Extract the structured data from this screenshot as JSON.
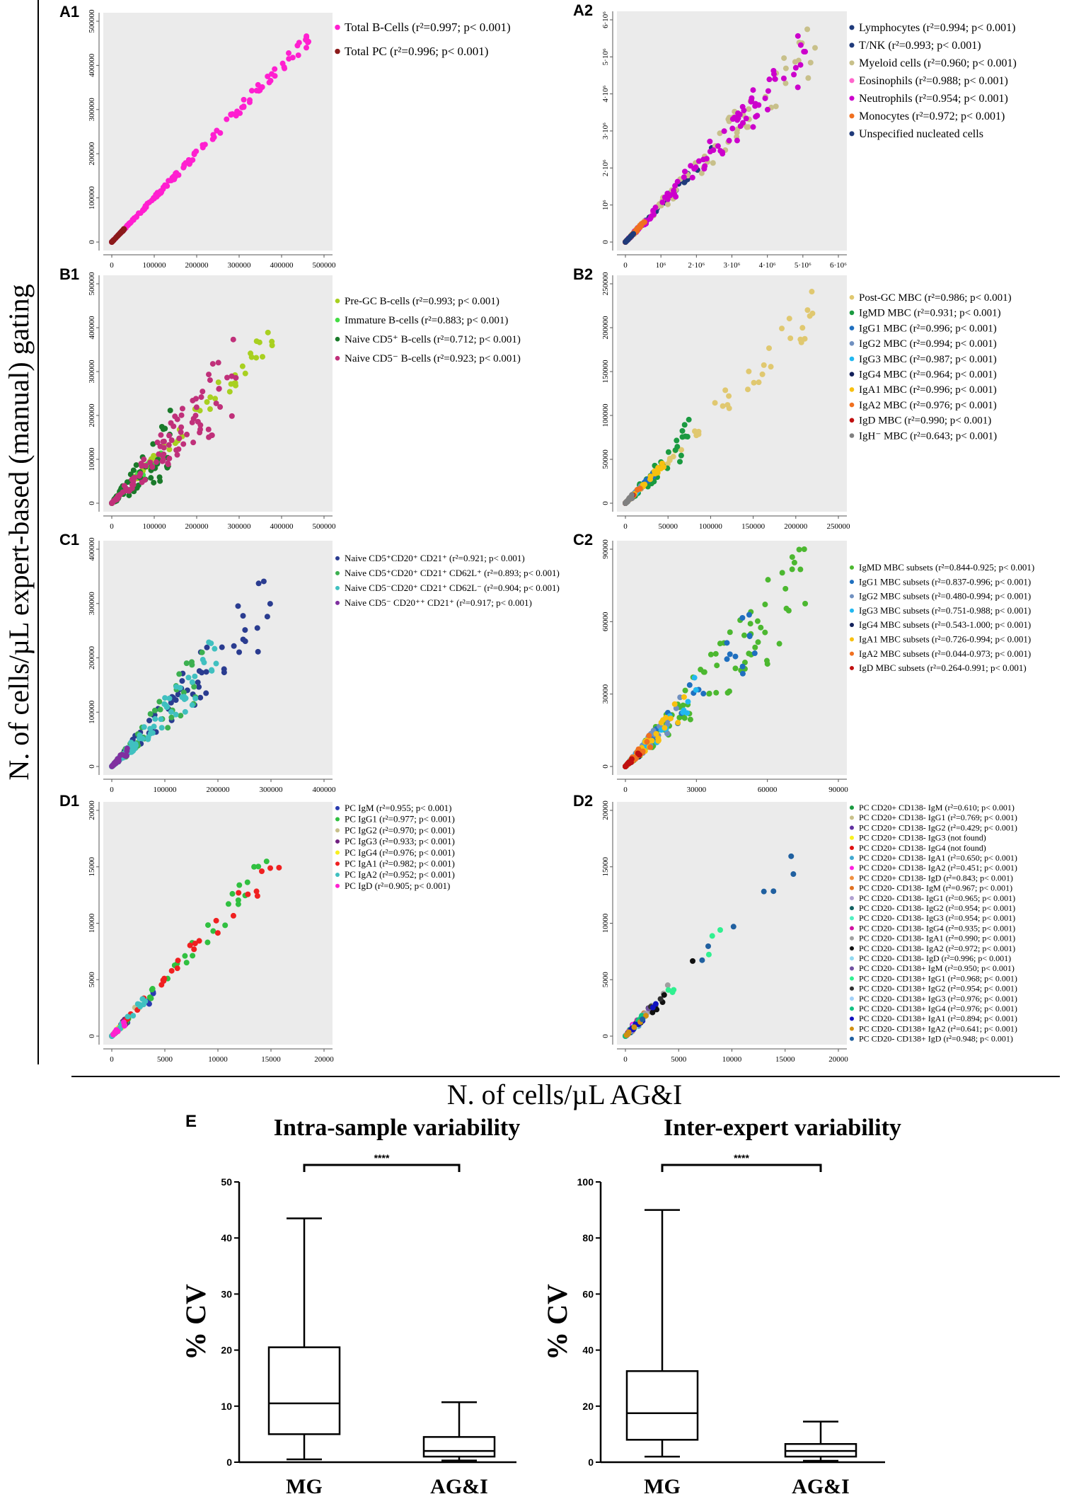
{
  "figure": {
    "y_axis_label": "N. of cells/µL expert-based (manual) gating",
    "x_axis_label": "N. of cells/µL AG&I",
    "panel_e_label": "E"
  },
  "chart_data": [
    {
      "id": "A1",
      "type": "scatter",
      "label": "A1",
      "xlim": [
        0,
        500000
      ],
      "ylim": [
        0,
        500000
      ],
      "ticks": [
        0,
        100000,
        200000,
        300000,
        400000,
        500000
      ],
      "tick_labels": [
        "0",
        "100000",
        "200000",
        "300000",
        "400000",
        "500000"
      ],
      "series": [
        {
          "name": "Total B-Cells (r²=0.997; p< 0.001)",
          "color": "#ff1fd0",
          "n": 150,
          "x_max": 480000,
          "spread": 0.04
        },
        {
          "name": "Total PC (r²=0.996; p< 0.001)",
          "color": "#8b1a1a",
          "n": 40,
          "x_max": 30000,
          "spread": 0.05
        }
      ]
    },
    {
      "id": "A2",
      "type": "scatter",
      "label": "A2",
      "xlim": [
        0,
        6000000
      ],
      "ylim": [
        0,
        6000000
      ],
      "ticks": [
        0,
        1000000,
        2000000,
        3000000,
        4000000,
        5000000,
        6000000
      ],
      "tick_labels": [
        "0",
        "10⁶",
        "2·10⁶",
        "3·10⁶",
        "4·10⁶",
        "5·10⁶",
        "6·10⁶"
      ],
      "series": [
        {
          "name": "Lymphocytes (r²=0.994; p< 0.001)",
          "color": "#1f3a7a",
          "n": 30,
          "x_max": 2500000,
          "spread": 0.05
        },
        {
          "name": "T/NK (r²=0.993; p< 0.001)",
          "color": "#1f3a7a",
          "n": 30,
          "x_max": 2000000,
          "spread": 0.05
        },
        {
          "name": "Myeloid cells (r²=0.960; p< 0.001)",
          "color": "#c8c08a",
          "n": 80,
          "x_max": 5500000,
          "spread": 0.15
        },
        {
          "name": "Eosinophils (r²=0.988; p< 0.001)",
          "color": "#ff66cc",
          "n": 20,
          "x_max": 800000,
          "spread": 0.08
        },
        {
          "name": "Neutrophils (r²=0.954; p< 0.001)",
          "color": "#cc00cc",
          "n": 110,
          "x_max": 5200000,
          "spread": 0.15
        },
        {
          "name": "Monocytes (r²=0.972; p< 0.001)",
          "color": "#f07020",
          "n": 50,
          "x_max": 600000,
          "spread": 0.1
        },
        {
          "name": "Unspecified nucleated cells",
          "color": "#1f3a7a",
          "n": 20,
          "x_max": 300000,
          "spread": 0.05
        }
      ]
    },
    {
      "id": "B1",
      "type": "scatter",
      "label": "B1",
      "xlim": [
        0,
        500000
      ],
      "ylim": [
        0,
        500000
      ],
      "ticks": [
        0,
        100000,
        200000,
        300000,
        400000,
        500000
      ],
      "tick_labels": [
        "0",
        "100000",
        "200000",
        "300000",
        "400000",
        "500000"
      ],
      "series": [
        {
          "name": "Pre-GC B-cells (r²=0.993; p< 0.001)",
          "color": "#a8d020",
          "n": 70,
          "x_max": 380000,
          "spread": 0.1
        },
        {
          "name": "Immature B-cells (r²=0.883; p< 0.001)",
          "color": "#44dd44",
          "n": 30,
          "x_max": 120000,
          "spread": 0.25
        },
        {
          "name": "Naive CD5⁺ B-cells (r²=0.712; p< 0.001)",
          "color": "#1a7a2a",
          "n": 60,
          "x_max": 140000,
          "spread": 0.6
        },
        {
          "name": "Naive CD5⁻ B-cells (r²=0.923; p< 0.001)",
          "color": "#c0307a",
          "n": 110,
          "x_max": 300000,
          "spread": 0.35
        }
      ]
    },
    {
      "id": "B2",
      "type": "scatter",
      "label": "B2",
      "xlim": [
        0,
        250000
      ],
      "ylim": [
        0,
        250000
      ],
      "ticks": [
        0,
        50000,
        100000,
        150000,
        200000,
        250000
      ],
      "tick_labels": [
        "0",
        "50000",
        "100000",
        "150000",
        "200000",
        "250000"
      ],
      "series": [
        {
          "name": "Post-GC MBC (r²=0.986; p< 0.001)",
          "color": "#e0c870",
          "n": 60,
          "x_max": 220000,
          "spread": 0.12
        },
        {
          "name": "IgMD MBC (r²=0.931; p< 0.001)",
          "color": "#1a9a40",
          "n": 50,
          "x_max": 80000,
          "spread": 0.3
        },
        {
          "name": "IgG1 MBC (r²=0.996; p< 0.001)",
          "color": "#1f6fbf",
          "n": 30,
          "x_max": 40000,
          "spread": 0.1
        },
        {
          "name": "IgG2 MBC (r²=0.994; p< 0.001)",
          "color": "#7090c0",
          "n": 20,
          "x_max": 20000,
          "spread": 0.1
        },
        {
          "name": "IgG3 MBC (r²=0.987; p< 0.001)",
          "color": "#22b8f0",
          "n": 20,
          "x_max": 15000,
          "spread": 0.1
        },
        {
          "name": "IgG4 MBC (r²=0.964; p< 0.001)",
          "color": "#12205a",
          "n": 15,
          "x_max": 8000,
          "spread": 0.15
        },
        {
          "name": "IgA1 MBC (r²=0.996; p< 0.001)",
          "color": "#f8c010",
          "n": 30,
          "x_max": 45000,
          "spread": 0.1
        },
        {
          "name": "IgA2 MBC (r²=0.976; p< 0.001)",
          "color": "#f07020",
          "n": 20,
          "x_max": 20000,
          "spread": 0.12
        },
        {
          "name": "IgD MBC (r²=0.990; p< 0.001)",
          "color": "#c01010",
          "n": 15,
          "x_max": 10000,
          "spread": 0.1
        },
        {
          "name": "IgH⁻ MBC (r²=0.643; p< 0.001)",
          "color": "#808080",
          "n": 20,
          "x_max": 8000,
          "spread": 0.3
        }
      ]
    },
    {
      "id": "C1",
      "type": "scatter",
      "label": "C1",
      "xlim": [
        0,
        400000
      ],
      "ylim": [
        0,
        400000
      ],
      "ticks": [
        0,
        100000,
        200000,
        300000,
        400000
      ],
      "tick_labels": [
        "0",
        "100000",
        "200000",
        "300000",
        "400000"
      ],
      "series": [
        {
          "name": "Naive CD5⁺CD20⁺ CD21⁺ (r²=0.921; p< 0.001)",
          "color": "#2a3c90",
          "n": 70,
          "x_max": 300000,
          "spread": 0.3
        },
        {
          "name": "Naive CD5⁺CD20⁺ CD21⁺ CD62L⁺ (r²=0.893; p< 0.001)",
          "color": "#3cb050",
          "n": 60,
          "x_max": 180000,
          "spread": 0.35
        },
        {
          "name": "Naive CD5⁻CD20⁺ CD21⁺ CD62L⁻ (r²=0.904; p< 0.001)",
          "color": "#40c0c0",
          "n": 90,
          "x_max": 200000,
          "spread": 0.3
        },
        {
          "name": "Naive CD5⁻ CD20⁺⁺ CD21⁺ (r²=0.917; p< 0.001)",
          "color": "#8030a0",
          "n": 30,
          "x_max": 30000,
          "spread": 0.3
        }
      ]
    },
    {
      "id": "C2",
      "type": "scatter",
      "label": "C2",
      "xlim": [
        0,
        90000
      ],
      "ylim": [
        0,
        90000
      ],
      "ticks": [
        0,
        30000,
        60000,
        90000
      ],
      "tick_labels": [
        "0",
        "30000",
        "60000",
        "90000"
      ],
      "series": [
        {
          "name": "IgMD MBC subsets (r²=0.844-0.925; p< 0.001)",
          "color": "#4cb830",
          "n": 110,
          "x_max": 80000,
          "spread": 0.3
        },
        {
          "name": "IgG1 MBC subsets (r²=0.837-0.996; p< 0.001)",
          "color": "#1f6fbf",
          "n": 40,
          "x_max": 60000,
          "spread": 0.25
        },
        {
          "name": "IgG2 MBC subsets (r²=0.480-0.994; p< 0.001)",
          "color": "#7090c0",
          "n": 30,
          "x_max": 25000,
          "spread": 0.3
        },
        {
          "name": "IgG3 MBC subsets (r²=0.751-0.988; p< 0.001)",
          "color": "#22b8f0",
          "n": 30,
          "x_max": 30000,
          "spread": 0.3
        },
        {
          "name": "IgG4 MBC subsets (r²=0.543-1.000; p< 0.001)",
          "color": "#12205a",
          "n": 15,
          "x_max": 8000,
          "spread": 0.3
        },
        {
          "name": "IgA1 MBC subsets (r²=0.726-0.994; p< 0.001)",
          "color": "#f8c010",
          "n": 50,
          "x_max": 25000,
          "spread": 0.25
        },
        {
          "name": "IgA2 MBC subsets (r²=0.044-0.973; p< 0.001)",
          "color": "#f07020",
          "n": 30,
          "x_max": 12000,
          "spread": 0.3
        },
        {
          "name": "IgD MBC subsets (r²=0.264-0.991; p< 0.001)",
          "color": "#c01010",
          "n": 15,
          "x_max": 6000,
          "spread": 0.3
        }
      ]
    },
    {
      "id": "D1",
      "type": "scatter",
      "label": "D1",
      "xlim": [
        0,
        20000
      ],
      "ylim": [
        0,
        20000
      ],
      "ticks": [
        0,
        5000,
        10000,
        15000,
        20000
      ],
      "tick_labels": [
        "0",
        "5000",
        "10000",
        "15000",
        "20000"
      ],
      "series": [
        {
          "name": "PC IgM (r²=0.955; p< 0.001)",
          "color": "#2a3cb0",
          "n": 20,
          "x_max": 4000,
          "spread": 0.2
        },
        {
          "name": "PC IgG1 (r²=0.977; p< 0.001)",
          "color": "#30c040",
          "n": 35,
          "x_max": 15000,
          "spread": 0.12
        },
        {
          "name": "PC IgG2 (r²=0.970; p< 0.001)",
          "color": "#c8c08a",
          "n": 15,
          "x_max": 3000,
          "spread": 0.2
        },
        {
          "name": "PC IgG3 (r²=0.933; p< 0.001)",
          "color": "#702080",
          "n": 10,
          "x_max": 1500,
          "spread": 0.3
        },
        {
          "name": "PC IgG4 (r²=0.976; p< 0.001)",
          "color": "#f8f020",
          "n": 10,
          "x_max": 1500,
          "spread": 0.2
        },
        {
          "name": "PC IgA1 (r²=0.982; p< 0.001)",
          "color": "#f02020",
          "n": 30,
          "x_max": 17500,
          "spread": 0.12
        },
        {
          "name": "PC IgA2 (r²=0.952; p< 0.001)",
          "color": "#40c0c0",
          "n": 20,
          "x_max": 3500,
          "spread": 0.2
        },
        {
          "name": "PC IgD (r²=0.905; p< 0.001)",
          "color": "#ff20d0",
          "n": 10,
          "x_max": 1500,
          "spread": 0.3
        }
      ]
    },
    {
      "id": "D2",
      "type": "scatter",
      "label": "D2",
      "xlim": [
        0,
        20000
      ],
      "ylim": [
        0,
        20000
      ],
      "ticks": [
        0,
        5000,
        10000,
        15000,
        20000
      ],
      "tick_labels": [
        "0",
        "5000",
        "10000",
        "15000",
        "20000"
      ],
      "series": [
        {
          "name": "PC CD20+ CD138- IgM (r²=0.610; p< 0.001)",
          "color": "#1a9a40",
          "n": 6,
          "x_max": 1500,
          "spread": 0.4
        },
        {
          "name": "PC CD20+ CD138- IgG1 (r²=0.769; p< 0.001)",
          "color": "#c8c08a",
          "n": 6,
          "x_max": 1500,
          "spread": 0.4
        },
        {
          "name": "PC CD20+ CD138- IgG2 (r²=0.429; p< 0.001)",
          "color": "#6030a0",
          "n": 5,
          "x_max": 800,
          "spread": 0.5
        },
        {
          "name": "PC CD20+ CD138- IgG3 (not found)",
          "color": "#f8f020",
          "n": 0,
          "x_max": 0,
          "spread": 0
        },
        {
          "name": "PC CD20+ CD138- IgG4 (not found)",
          "color": "#e01010",
          "n": 0,
          "x_max": 0,
          "spread": 0
        },
        {
          "name": "PC CD20+ CD138- IgA1 (r²=0.650; p< 0.001)",
          "color": "#40a8d0",
          "n": 6,
          "x_max": 1500,
          "spread": 0.4
        },
        {
          "name": "PC CD20+ CD138- IgA2 (r²=0.451; p< 0.001)",
          "color": "#ff20e0",
          "n": 5,
          "x_max": 800,
          "spread": 0.5
        },
        {
          "name": "PC CD20+ CD138- IgD (r²=0.843; p< 0.001)",
          "color": "#f09040",
          "n": 5,
          "x_max": 800,
          "spread": 0.3
        },
        {
          "name": "PC CD20- CD138- IgM (r²=0.967; p< 0.001)",
          "color": "#e07020",
          "n": 10,
          "x_max": 3000,
          "spread": 0.2
        },
        {
          "name": "PC CD20- CD138- IgG1 (r²=0.965; p< 0.001)",
          "color": "#b0a0d0",
          "n": 10,
          "x_max": 4000,
          "spread": 0.2
        },
        {
          "name": "PC CD20- CD138- IgG2 (r²=0.954; p< 0.001)",
          "color": "#106060",
          "n": 10,
          "x_max": 3000,
          "spread": 0.2
        },
        {
          "name": "PC CD20- CD138- IgG3 (r²=0.954; p< 0.001)",
          "color": "#50f0c0",
          "n": 8,
          "x_max": 2000,
          "spread": 0.2
        },
        {
          "name": "PC CD20- CD138- IgG4 (r²=0.935; p< 0.001)",
          "color": "#d010a0",
          "n": 6,
          "x_max": 1500,
          "spread": 0.3
        },
        {
          "name": "PC CD20- CD138- IgA1 (r²=0.990; p< 0.001)",
          "color": "#a0a0a0",
          "n": 12,
          "x_max": 5000,
          "spread": 0.15
        },
        {
          "name": "PC CD20- CD138- IgA2 (r²=0.972; p< 0.001)",
          "color": "#101010",
          "n": 12,
          "x_max": 8000,
          "spread": 0.2
        },
        {
          "name": "PC CD20- CD138- IgD (r²=0.996; p< 0.001)",
          "color": "#90d8f0",
          "n": 6,
          "x_max": 1500,
          "spread": 0.1
        },
        {
          "name": "PC CD20- CD138+ IgM (r²=0.950; p< 0.001)",
          "color": "#7050a0",
          "n": 8,
          "x_max": 2500,
          "spread": 0.2
        },
        {
          "name": "PC CD20- CD138+ IgG1 (r²=0.968; p< 0.001)",
          "color": "#30f090",
          "n": 12,
          "x_max": 10500,
          "spread": 0.15
        },
        {
          "name": "PC CD20- CD138+ IgG2 (r²=0.954; p< 0.001)",
          "color": "#303030",
          "n": 8,
          "x_max": 4000,
          "spread": 0.2
        },
        {
          "name": "PC CD20- CD138+ IgG3 (r²=0.976; p< 0.001)",
          "color": "#a0d0f8",
          "n": 6,
          "x_max": 2000,
          "spread": 0.2
        },
        {
          "name": "PC CD20- CD138+ IgG4 (r²=0.976; p< 0.001)",
          "color": "#10c080",
          "n": 6,
          "x_max": 2000,
          "spread": 0.2
        },
        {
          "name": "PC CD20- CD138+ IgA1 (r²=0.894; p< 0.001)",
          "color": "#1010c0",
          "n": 8,
          "x_max": 3000,
          "spread": 0.3
        },
        {
          "name": "PC CD20- CD138+ IgA2 (r²=0.641; p< 0.001)",
          "color": "#d09010",
          "n": 6,
          "x_max": 2000,
          "spread": 0.4
        },
        {
          "name": "PC CD20- CD138+ IgD (r²=0.948; p< 0.001)",
          "color": "#2060a0",
          "n": 8,
          "x_max": 18500,
          "spread": 0.1
        }
      ]
    },
    {
      "id": "E_left",
      "type": "box",
      "title": "Intra-sample variability",
      "ylabel": "% CV",
      "ylim": [
        0,
        50
      ],
      "ticks": [
        0,
        10,
        20,
        30,
        40,
        50
      ],
      "tick_labels": [
        "0",
        "10",
        "20",
        "30",
        "40",
        "50"
      ],
      "significance": "****",
      "groups": [
        {
          "name": "MG",
          "min": 0.5,
          "q1": 5,
          "median": 10.5,
          "q3": 20.5,
          "max": 43.5
        },
        {
          "name": "AG&I",
          "min": 0.3,
          "q1": 1,
          "median": 2,
          "q3": 4.5,
          "max": 10.7
        }
      ]
    },
    {
      "id": "E_right",
      "type": "box",
      "title": "Inter-expert variability",
      "ylabel": "% CV",
      "ylim": [
        0,
        100
      ],
      "ticks": [
        0,
        20,
        40,
        60,
        80,
        100
      ],
      "tick_labels": [
        "0",
        "20",
        "40",
        "60",
        "80",
        "100"
      ],
      "significance": "****",
      "groups": [
        {
          "name": "MG",
          "min": 2,
          "q1": 8,
          "median": 17.5,
          "q3": 32.5,
          "max": 90
        },
        {
          "name": "AG&I",
          "min": 0.5,
          "q1": 2,
          "median": 4,
          "q3": 6.5,
          "max": 14.5
        }
      ]
    }
  ]
}
